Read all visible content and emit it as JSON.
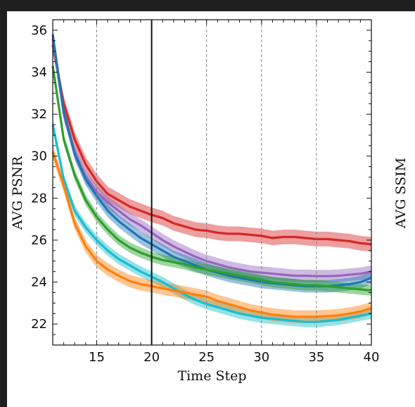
{
  "chart_data": {
    "type": "line",
    "xlabel": "Time Step",
    "ylabel": "AVG PSNR",
    "y2label": "AVG SSIM",
    "xlim": [
      11,
      40
    ],
    "ylim": [
      21,
      36.5
    ],
    "xticks": [
      15,
      20,
      25,
      30,
      35,
      40
    ],
    "yticks": [
      22,
      24,
      26,
      28,
      30,
      32,
      34,
      36
    ],
    "dashed_vlines": [
      15,
      25,
      30,
      35
    ],
    "solid_vline": 20,
    "grid": false,
    "x": [
      11,
      12,
      13,
      14,
      15,
      16,
      17,
      18,
      19,
      20,
      21,
      22,
      23,
      24,
      25,
      26,
      27,
      28,
      29,
      30,
      31,
      32,
      33,
      34,
      35,
      36,
      37,
      38,
      39,
      40
    ],
    "series": [
      {
        "color": "#d62728",
        "band": 0.35,
        "values": [
          35.3,
          32.5,
          30.8,
          29.6,
          28.8,
          28.2,
          27.9,
          27.6,
          27.4,
          27.2,
          27.05,
          26.8,
          26.65,
          26.5,
          26.45,
          26.35,
          26.3,
          26.3,
          26.25,
          26.2,
          26.1,
          26.15,
          26.15,
          26.1,
          26.05,
          26.05,
          26.0,
          25.95,
          25.85,
          25.8
        ]
      },
      {
        "color": "#9467bd",
        "band": 0.3,
        "values": [
          35.6,
          32.0,
          30.2,
          29.0,
          28.3,
          27.8,
          27.4,
          27.0,
          26.7,
          26.35,
          26.0,
          25.7,
          25.45,
          25.2,
          25.0,
          24.85,
          24.7,
          24.6,
          24.5,
          24.45,
          24.4,
          24.35,
          24.3,
          24.3,
          24.28,
          24.28,
          24.3,
          24.35,
          24.4,
          24.5
        ]
      },
      {
        "color": "#1f77b4",
        "band": 0.3,
        "values": [
          35.8,
          32.1,
          30.1,
          28.9,
          28.1,
          27.4,
          26.9,
          26.5,
          26.1,
          25.8,
          25.5,
          25.2,
          25.0,
          24.8,
          24.6,
          24.45,
          24.3,
          24.2,
          24.1,
          24.0,
          23.95,
          23.9,
          23.85,
          23.8,
          23.8,
          23.8,
          23.85,
          23.9,
          24.0,
          24.2
        ]
      },
      {
        "color": "#2ca02c",
        "band": 0.25,
        "values": [
          34.3,
          30.8,
          29.1,
          27.9,
          27.1,
          26.5,
          26.0,
          25.65,
          25.4,
          25.2,
          25.05,
          24.95,
          24.85,
          24.7,
          24.6,
          24.5,
          24.4,
          24.3,
          24.2,
          24.1,
          24.0,
          23.95,
          23.9,
          23.85,
          23.85,
          23.8,
          23.75,
          23.7,
          23.65,
          23.6
        ]
      },
      {
        "color": "#17becf",
        "band": 0.25,
        "values": [
          31.5,
          28.9,
          27.4,
          26.6,
          26.0,
          25.5,
          25.1,
          24.8,
          24.5,
          24.25,
          24.0,
          23.7,
          23.4,
          23.15,
          22.95,
          22.8,
          22.65,
          22.5,
          22.4,
          22.3,
          22.25,
          22.2,
          22.15,
          22.1,
          22.1,
          22.15,
          22.2,
          22.3,
          22.4,
          22.5
        ]
      },
      {
        "color": "#ff7f0e",
        "band": 0.3,
        "values": [
          30.2,
          28.6,
          26.8,
          25.7,
          25.0,
          24.6,
          24.3,
          24.05,
          23.9,
          23.8,
          23.7,
          23.6,
          23.5,
          23.4,
          23.3,
          23.1,
          22.95,
          22.8,
          22.65,
          22.55,
          22.45,
          22.4,
          22.35,
          22.35,
          22.35,
          22.38,
          22.42,
          22.5,
          22.6,
          22.75
        ]
      }
    ]
  }
}
